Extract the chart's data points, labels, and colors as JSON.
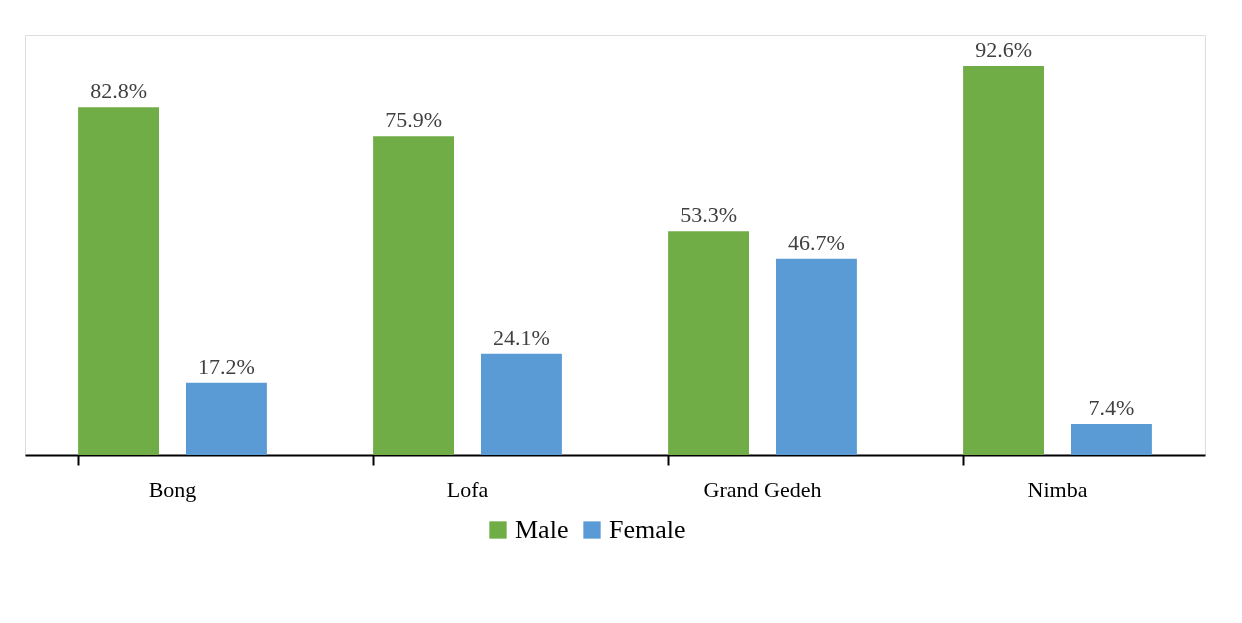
{
  "chart_data": {
    "type": "bar",
    "categories": [
      "Bong",
      "Lofa",
      "Grand Gedeh",
      "Nimba"
    ],
    "series": [
      {
        "name": "Male",
        "color": "#70ad47",
        "values": [
          82.8,
          75.9,
          53.3,
          92.6
        ],
        "value_labels": [
          "82.8%",
          "75.9%",
          "53.3%",
          "92.6%"
        ]
      },
      {
        "name": "Female",
        "color": "#5b9bd5",
        "values": [
          17.2,
          24.1,
          46.7,
          7.4
        ],
        "value_labels": [
          "17.2%",
          "24.1%",
          "46.7%",
          "7.4%"
        ]
      }
    ],
    "legend": "bottom"
  }
}
